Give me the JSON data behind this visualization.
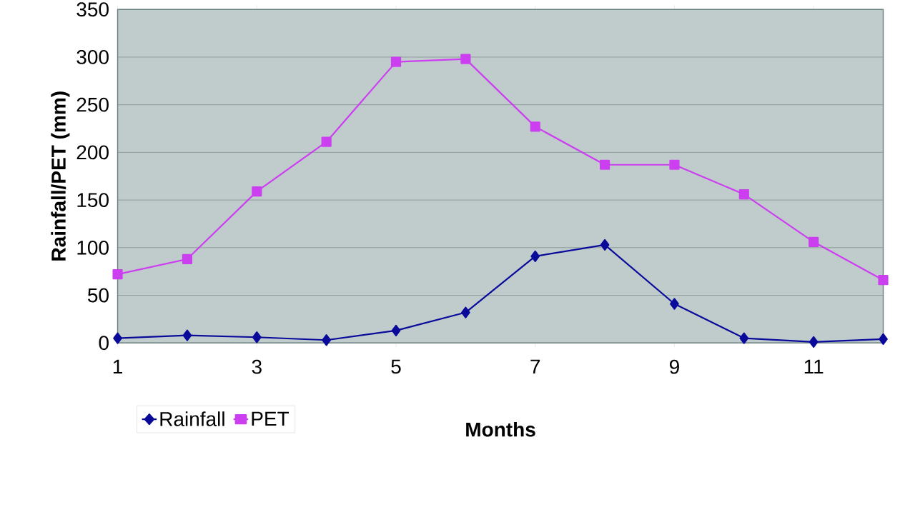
{
  "chart_data": {
    "type": "line",
    "xlabel": "Months",
    "ylabel": "Rainfall/PET (mm)",
    "x": [
      1,
      2,
      3,
      4,
      5,
      6,
      7,
      8,
      9,
      10,
      11,
      12
    ],
    "xlim": [
      1,
      12
    ],
    "xticks": [
      1,
      3,
      5,
      7,
      9,
      11
    ],
    "ylim": [
      0,
      350
    ],
    "yticks": [
      0,
      50,
      100,
      150,
      200,
      250,
      300,
      350
    ],
    "grid": "y",
    "legend": "bottom left",
    "series": [
      {
        "name": "Rainfall",
        "color": "#0a0a9a",
        "marker": "diamond",
        "values": [
          5,
          8,
          6,
          3,
          13,
          32,
          91,
          103,
          41,
          5,
          1,
          4
        ]
      },
      {
        "name": "PET",
        "color": "#cc3ff0",
        "marker": "square",
        "values": [
          72,
          88,
          159,
          211,
          295,
          298,
          227,
          187,
          187,
          156,
          106,
          66
        ]
      }
    ]
  }
}
